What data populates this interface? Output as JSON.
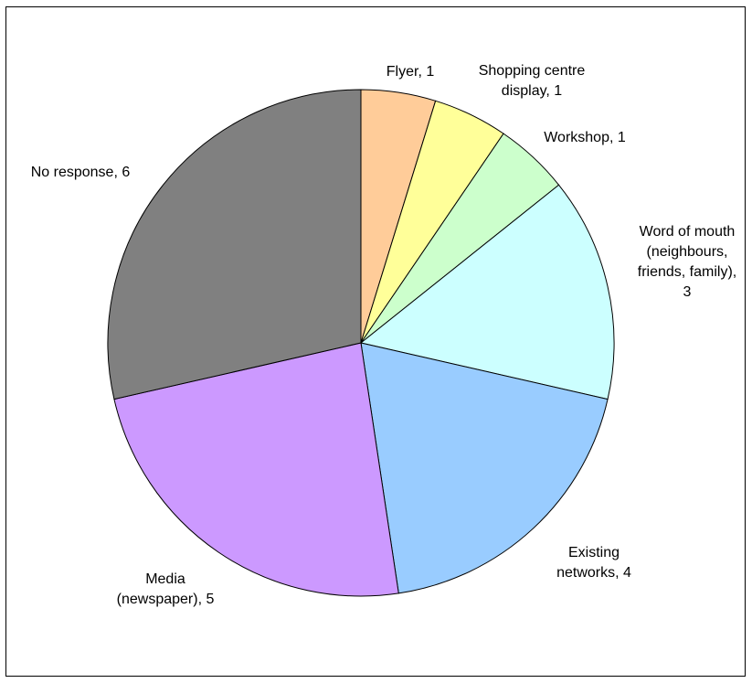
{
  "chart_data": {
    "type": "pie",
    "title": "",
    "start_angle_deg": 0,
    "direction": "clockwise",
    "legend": "none",
    "slices": [
      {
        "label": [
          "Flyer, 1"
        ],
        "value": 1,
        "color": "#ffcc99"
      },
      {
        "label": [
          "Shopping centre",
          "display, 1"
        ],
        "value": 1,
        "color": "#ffff99"
      },
      {
        "label": [
          "Workshop, 1"
        ],
        "value": 1,
        "color": "#ccffcc"
      },
      {
        "label": [
          "Word of mouth",
          "(neighbours,",
          "friends, family),",
          "3"
        ],
        "value": 3,
        "color": "#ccffff"
      },
      {
        "label": [
          "Existing",
          "networks, 4"
        ],
        "value": 4,
        "color": "#99ccff"
      },
      {
        "label": [
          "Media",
          "(newspaper), 5"
        ],
        "value": 5,
        "color": "#cc99ff"
      },
      {
        "label": [
          "No response, 6"
        ],
        "value": 6,
        "color": "#808080"
      }
    ]
  }
}
